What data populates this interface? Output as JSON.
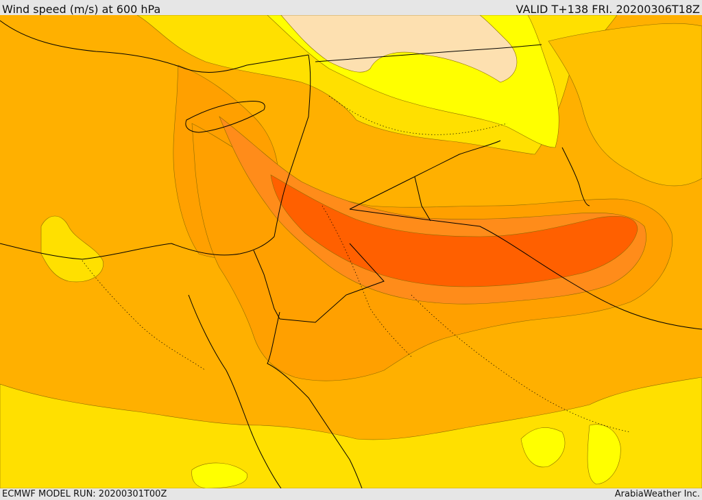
{
  "header": {
    "title": "Wind speed (m/s) at 600 hPa",
    "valid": "VALID T+138 FRI. 20200306T18Z"
  },
  "footer": {
    "model_run": "ECMWF MODEL RUN: 20200301T00Z",
    "credit": "ArabiaWeather Inc."
  },
  "palette": {
    "very_light": "#fde0b0",
    "yellow_light": "#ffff00",
    "yellow": "#ffe000",
    "gold": "#ffc000",
    "amber": "#ffb000",
    "orange_light": "#ffa000",
    "orange": "#ff8c1a",
    "orange_dark": "#ff7a1a",
    "red_orange": "#ff6000",
    "border": "#000000"
  }
}
